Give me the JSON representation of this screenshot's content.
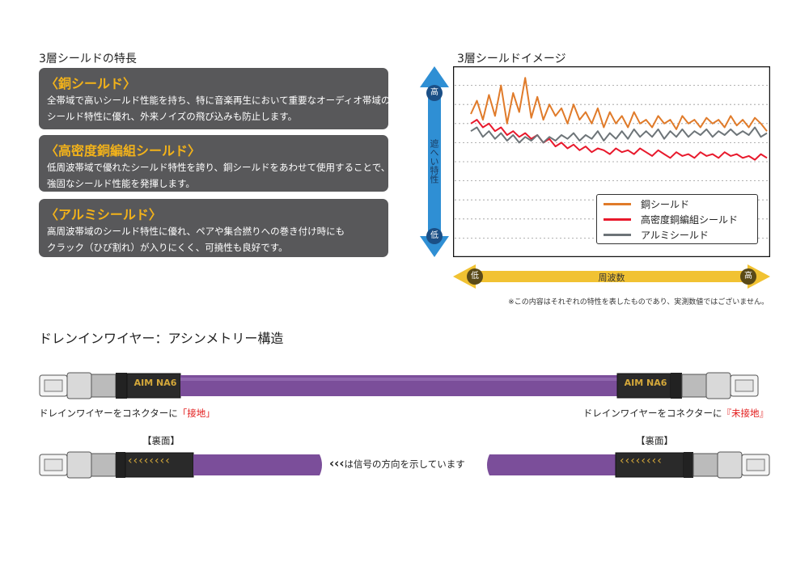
{
  "left_section": {
    "title": "3層シールドの特長",
    "boxes": [
      {
        "title": "〈銅シールド〉",
        "body": "全帯域で高いシールド性能を持ち、特に音楽再生において重要なオーディオ帯域の\nシールド特性に優れ、外来ノイズの飛び込みも防止します。"
      },
      {
        "title": "〈高密度銅編組シールド〉",
        "body": "低周波帯域で優れたシールド特性を誇り、銅シールドをあわせて使用することで、\n強固なシールド性能を発揮します。"
      },
      {
        "title": "〈アルミシールド〉",
        "body": "高周波帯域のシールド特性に優れ、ペアや集合撚りへの巻き付け時にも\nクラック（ひび割れ）が入りにくく、可撓性も良好です。"
      }
    ]
  },
  "chart_section": {
    "title": "3層シールドイメージ",
    "y_axis": {
      "label": "遮へい特性",
      "high": "高",
      "low": "低"
    },
    "x_axis": {
      "label": "周波数",
      "low": "低",
      "high": "高"
    },
    "note": "※この内容はそれぞれの特性を表したものであり、実測数値ではございません。",
    "colors": {
      "copper": "#e07b2a",
      "braid": "#e8192c",
      "aluminum": "#6d7478",
      "axis_arrow_v": "#2f8fd4",
      "axis_arrow_h": "#f1c232"
    }
  },
  "chart_data": {
    "type": "line",
    "title": "3層シールドイメージ",
    "xlabel": "周波数",
    "ylabel": "遮へい特性",
    "x_ticks": [
      "低",
      "高"
    ],
    "y_ticks": [
      "高",
      "低"
    ],
    "grid": true,
    "legend_position": "bottom-right",
    "series": [
      {
        "name": "銅シールド",
        "color": "#e07b2a",
        "values": [
          75,
          82,
          72,
          85,
          74,
          90,
          70,
          86,
          76,
          94,
          73,
          84,
          72,
          80,
          74,
          78,
          70,
          80,
          72,
          76,
          70,
          78,
          68,
          76,
          70,
          74,
          68,
          76,
          70,
          72,
          68,
          74,
          70,
          72,
          67,
          74,
          70,
          72,
          68,
          73,
          70,
          72,
          68,
          74,
          69,
          72,
          68,
          73,
          70,
          66
        ]
      },
      {
        "name": "高密度銅編組シールド",
        "color": "#e8192c",
        "values": [
          70,
          72,
          68,
          70,
          66,
          68,
          64,
          66,
          63,
          65,
          62,
          64,
          60,
          62,
          58,
          60,
          57,
          59,
          56,
          58,
          55,
          57,
          56,
          54,
          57,
          55,
          56,
          54,
          57,
          55,
          53,
          56,
          54,
          52,
          55,
          53,
          54,
          52,
          55,
          53,
          54,
          52,
          55,
          53,
          54,
          52,
          53,
          51,
          54,
          52
        ]
      },
      {
        "name": "アルミシールド",
        "color": "#6d7478",
        "values": [
          66,
          68,
          63,
          66,
          62,
          65,
          61,
          64,
          60,
          63,
          61,
          64,
          60,
          63,
          61,
          64,
          62,
          65,
          61,
          64,
          62,
          66,
          61,
          65,
          62,
          66,
          62,
          67,
          63,
          66,
          63,
          67,
          62,
          66,
          63,
          67,
          63,
          66,
          64,
          67,
          63,
          66,
          64,
          67,
          64,
          66,
          64,
          68,
          63,
          65
        ]
      }
    ]
  },
  "drain_section": {
    "title": "ドレンインワイヤー：アシンメトリー構造",
    "brand_left": "AIM NA6",
    "brand_right": "AIM NA6",
    "left_caption": "ドレインワイヤーをコネクターに",
    "left_caption_emph": "「接地」",
    "right_caption": "ドレインワイヤーをコネクターに",
    "right_caption_emph": "『未接地』",
    "back_label_left": "【裏面】",
    "back_label_right": "【裏面】",
    "chevrons": "‹‹‹‹‹‹‹‹",
    "signal_arrows": "‹‹‹",
    "signal_text": "は信号の方向を示しています",
    "colors": {
      "cable": "#7b4e9a",
      "emph": "#e21818",
      "gold": "#d4a83a"
    }
  }
}
